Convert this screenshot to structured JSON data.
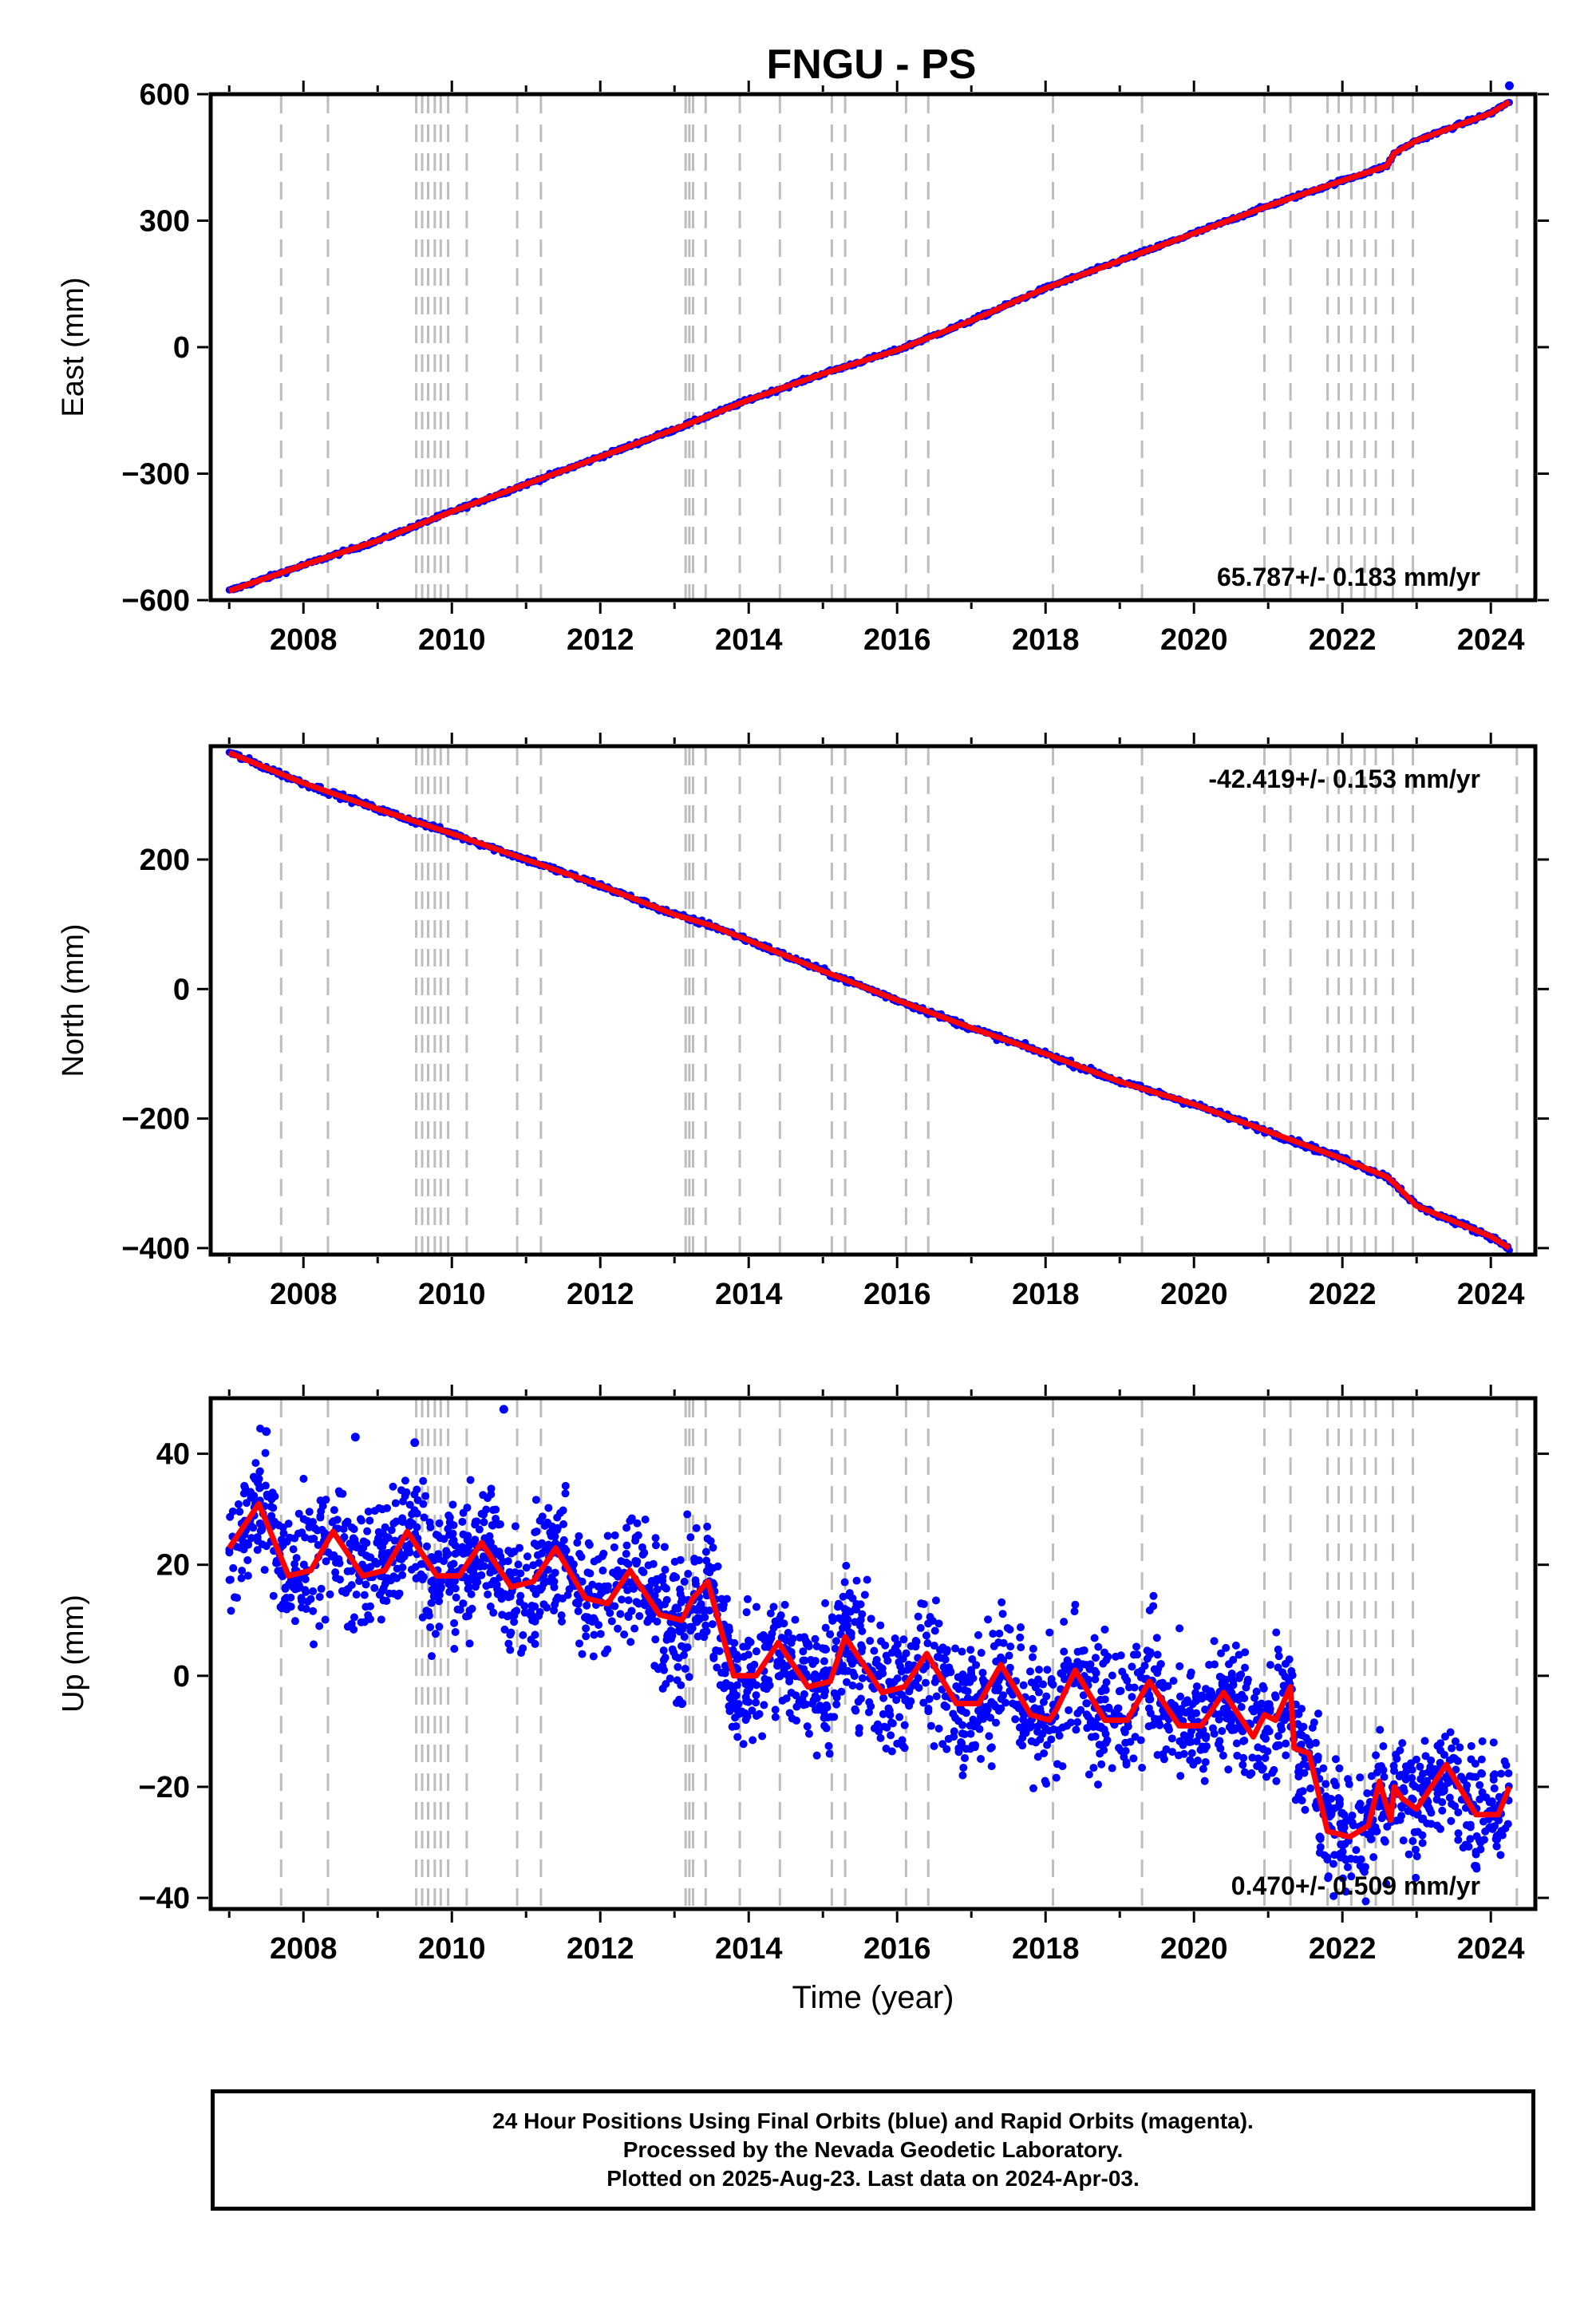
{
  "chart_data": [
    {
      "type": "scatter",
      "title": "FNGU - PS",
      "ylabel": "East (mm)",
      "xlabel": "",
      "xlim": [
        2006.75,
        2024.6
      ],
      "ylim": [
        -600,
        600
      ],
      "x_ticks": [
        2008,
        2010,
        2012,
        2014,
        2016,
        2018,
        2020,
        2022,
        2024
      ],
      "y_ticks": [
        -600,
        -300,
        0,
        300,
        600
      ],
      "y_tick_labels": [
        "−600",
        "−300",
        "0",
        "300",
        "600"
      ],
      "rate_label": "65.787+/- 0.183 mm/yr",
      "rate_position": "bottom-right",
      "grid": false,
      "series": [
        {
          "color": "#0000ff",
          "x": [
            2007.0,
            2008.0,
            2009.0,
            2010.0,
            2011.0,
            2012.0,
            2013.0,
            2014.0,
            2015.0,
            2016.0,
            2017.0,
            2018.0,
            2019.0,
            2020.0,
            2021.0,
            2022.0,
            2022.6,
            2022.7,
            2023.0,
            2024.0,
            2024.25
          ],
          "y": [
            -578,
            -517,
            -459,
            -390,
            -325,
            -260,
            -195,
            -125,
            -63,
            -7,
            63,
            140,
            205,
            270,
            335,
            395,
            430,
            460,
            490,
            555,
            582
          ]
        },
        {
          "color": "#ff0000",
          "x": [
            2007.0,
            2008.0,
            2009.0,
            2010.0,
            2011.0,
            2012.0,
            2013.0,
            2014.0,
            2015.0,
            2016.0,
            2017.0,
            2018.0,
            2019.0,
            2020.0,
            2021.0,
            2022.0,
            2022.6,
            2022.7,
            2023.0,
            2024.0,
            2024.25
          ],
          "y": [
            -578,
            -517,
            -459,
            -390,
            -325,
            -260,
            -195,
            -125,
            -63,
            -7,
            63,
            140,
            205,
            270,
            335,
            395,
            430,
            460,
            490,
            555,
            582
          ]
        }
      ],
      "outliers": [
        [
          2024.25,
          620
        ]
      ]
    },
    {
      "type": "scatter",
      "title": "",
      "ylabel": "North (mm)",
      "xlabel": "",
      "xlim": [
        2006.75,
        2024.6
      ],
      "ylim": [
        -410,
        375
      ],
      "x_ticks": [
        2008,
        2010,
        2012,
        2014,
        2016,
        2018,
        2020,
        2022,
        2024
      ],
      "y_ticks": [
        -400,
        -200,
        0,
        200
      ],
      "y_tick_labels": [
        "−400",
        "−200",
        "0",
        "200"
      ],
      "rate_label": "-42.419+/- 0.153 mm/yr",
      "rate_position": "top-right",
      "grid": false,
      "series": [
        {
          "color": "#0000ff",
          "x": [
            2007.0,
            2008.0,
            2009.0,
            2010.0,
            2011.0,
            2012.0,
            2013.0,
            2013.5,
            2014.0,
            2015.0,
            2016.0,
            2017.0,
            2018.0,
            2019.0,
            2020.0,
            2021.0,
            2022.0,
            2022.6,
            2022.7,
            2023.0,
            2024.0,
            2024.25
          ],
          "y": [
            365,
            318,
            278,
            240,
            200,
            160,
            115,
            98,
            75,
            28,
            -17,
            -60,
            -100,
            -143,
            -178,
            -220,
            -262,
            -290,
            -300,
            -335,
            -382,
            -400
          ]
        },
        {
          "color": "#ff0000",
          "x": [
            2007.0,
            2008.0,
            2009.0,
            2010.0,
            2011.0,
            2012.0,
            2013.0,
            2013.5,
            2014.0,
            2015.0,
            2016.0,
            2017.0,
            2018.0,
            2019.0,
            2020.0,
            2021.0,
            2022.0,
            2022.6,
            2022.7,
            2023.0,
            2024.0,
            2024.25
          ],
          "y": [
            365,
            318,
            278,
            240,
            200,
            160,
            115,
            98,
            75,
            28,
            -17,
            -60,
            -100,
            -143,
            -178,
            -220,
            -262,
            -290,
            -300,
            -335,
            -382,
            -400
          ]
        }
      ]
    },
    {
      "type": "scatter",
      "title": "",
      "ylabel": "Up (mm)",
      "xlabel": "Time (year)",
      "xlim": [
        2006.75,
        2024.6
      ],
      "ylim": [
        -42,
        50
      ],
      "x_ticks": [
        2008,
        2010,
        2012,
        2014,
        2016,
        2018,
        2020,
        2022,
        2024
      ],
      "y_ticks": [
        -40,
        -20,
        0,
        20,
        40
      ],
      "y_tick_labels": [
        "−40",
        "−20",
        "0",
        "20",
        "40"
      ],
      "rate_label": "0.470+/- 0.509 mm/yr",
      "rate_position": "bottom-right",
      "grid": false,
      "series": [
        {
          "color": "#ff0000",
          "x": [
            2007.0,
            2007.4,
            2007.8,
            2008.1,
            2008.4,
            2008.8,
            2009.1,
            2009.4,
            2009.8,
            2010.1,
            2010.4,
            2010.8,
            2011.1,
            2011.4,
            2011.8,
            2012.1,
            2012.4,
            2012.8,
            2013.1,
            2013.25,
            2013.45,
            2013.55,
            2013.8,
            2014.1,
            2014.4,
            2014.8,
            2015.1,
            2015.3,
            2015.6,
            2015.8,
            2016.1,
            2016.4,
            2016.8,
            2017.1,
            2017.4,
            2017.8,
            2018.05,
            2018.15,
            2018.4,
            2018.8,
            2019.1,
            2019.4,
            2019.8,
            2020.1,
            2020.4,
            2020.8,
            2020.95,
            2021.1,
            2021.3,
            2021.35,
            2021.55,
            2021.8,
            2022.1,
            2022.35,
            2022.5,
            2022.65,
            2022.7,
            2022.8,
            2023.0,
            2023.4,
            2023.8,
            2024.1,
            2024.25
          ],
          "y": [
            23,
            31,
            18,
            19,
            26,
            18,
            19,
            26,
            18,
            18,
            24,
            16,
            17,
            23,
            14,
            13,
            19,
            11,
            10,
            14,
            17,
            12,
            0,
            0,
            6,
            -2,
            -1,
            7,
            1,
            -3,
            -2,
            4,
            -5,
            -5,
            2,
            -7,
            -8,
            -6,
            1,
            -8,
            -8,
            -1,
            -9,
            -9,
            -3,
            -11,
            -7,
            -8,
            -2,
            -13,
            -14,
            -28,
            -29,
            -27,
            -19,
            -26,
            -20,
            -22,
            -24,
            -16,
            -25,
            -25,
            -20
          ]
        }
      ],
      "scatter_color": "#0000ff",
      "scatter_spread_mm": 8,
      "outliers": [
        [
          2010.7,
          48
        ],
        [
          2007.5,
          44
        ],
        [
          2008.7,
          43
        ],
        [
          2009.5,
          42
        ],
        [
          2013.1,
          -5
        ]
      ]
    }
  ],
  "event_lines_years": [
    2007.7,
    2008.33,
    2009.52,
    2009.6,
    2009.68,
    2009.77,
    2009.85,
    2009.95,
    2010.2,
    2010.88,
    2011.2,
    2013.15,
    2013.2,
    2013.25,
    2013.42,
    2013.88,
    2014.42,
    2015.12,
    2015.3,
    2016.12,
    2016.42,
    2018.1,
    2019.3,
    2020.95,
    2021.3,
    2021.8,
    2021.95,
    2022.12,
    2022.3,
    2022.45,
    2022.68,
    2022.95,
    2024.35
  ],
  "footer": {
    "line1": "24 Hour Positions Using Final Orbits (blue) and Rapid Orbits (magenta).",
    "line2": "Processed by the Nevada Geodetic Laboratory.",
    "line3": "Plotted on 2025-Aug-23. Last data on 2024-Apr-03."
  }
}
